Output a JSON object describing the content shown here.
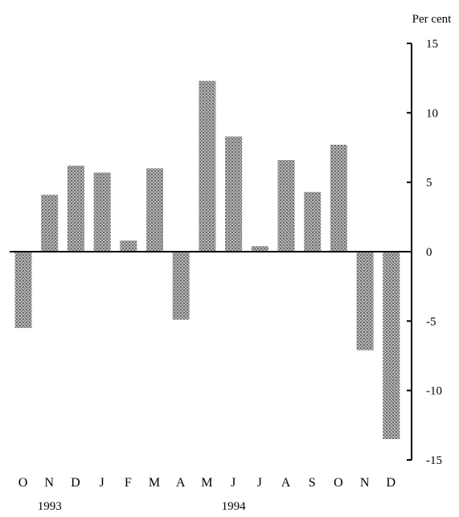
{
  "chart_data": {
    "type": "bar",
    "title": "",
    "xlabel": "",
    "ylabel": "Per cent",
    "ylim": [
      -15,
      15
    ],
    "yticks": [
      15,
      10,
      5,
      0,
      -5,
      -10,
      -15
    ],
    "categories": [
      "O",
      "N",
      "D",
      "J",
      "F",
      "M",
      "A",
      "M",
      "J",
      "J",
      "A",
      "S",
      "O",
      "N",
      "D"
    ],
    "values": [
      -5.5,
      4.1,
      6.2,
      5.7,
      0.8,
      6.0,
      -4.9,
      12.3,
      8.3,
      0.4,
      6.6,
      4.3,
      7.7,
      -7.1,
      -13.5
    ],
    "year_labels": [
      {
        "label": "1993",
        "category_index": 1
      },
      {
        "label": "1994",
        "category_index": 8
      }
    ],
    "grid": false,
    "legend": "none",
    "colors": {
      "bar": "#9a9a9a",
      "axis": "#000000"
    }
  }
}
